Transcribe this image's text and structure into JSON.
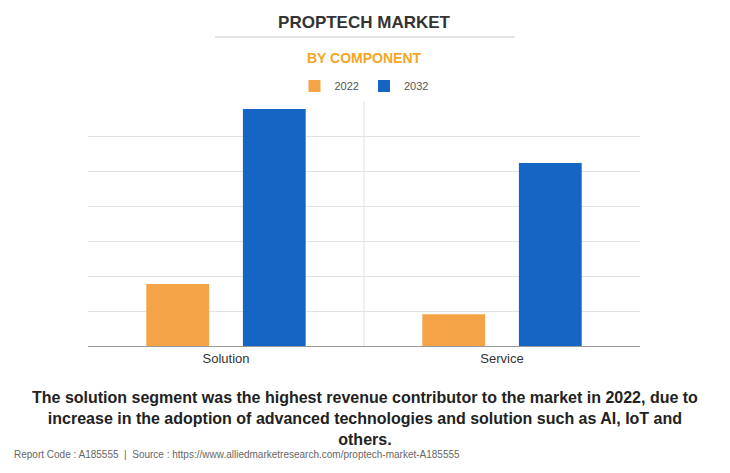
{
  "chart_data": {
    "type": "bar",
    "title": "PROPTECH MARKET",
    "subtitle": "BY COMPONENT",
    "categories": [
      "Solution",
      "Service"
    ],
    "series": [
      {
        "name": "2022",
        "color": "#f4a446",
        "values": [
          1.77,
          0.91
        ]
      },
      {
        "name": "2032",
        "color": "#1565c4",
        "values": [
          6.77,
          5.23
        ]
      }
    ],
    "ylim": [
      0,
      7
    ],
    "yticks": [
      0,
      1,
      2,
      3,
      4,
      5,
      6,
      7
    ],
    "grid": true,
    "legend": "top",
    "tick_labels": "x",
    "annotations": [
      "The solution segment was the highest revenue contributor to the market in 2022, due to increase in the adoption of advanced technologies and solution such as AI, IoT and others.",
      "Report Code : A185555  |  Source : https://www.alliedmarketresearch.com/proptech-market-A185555"
    ]
  }
}
